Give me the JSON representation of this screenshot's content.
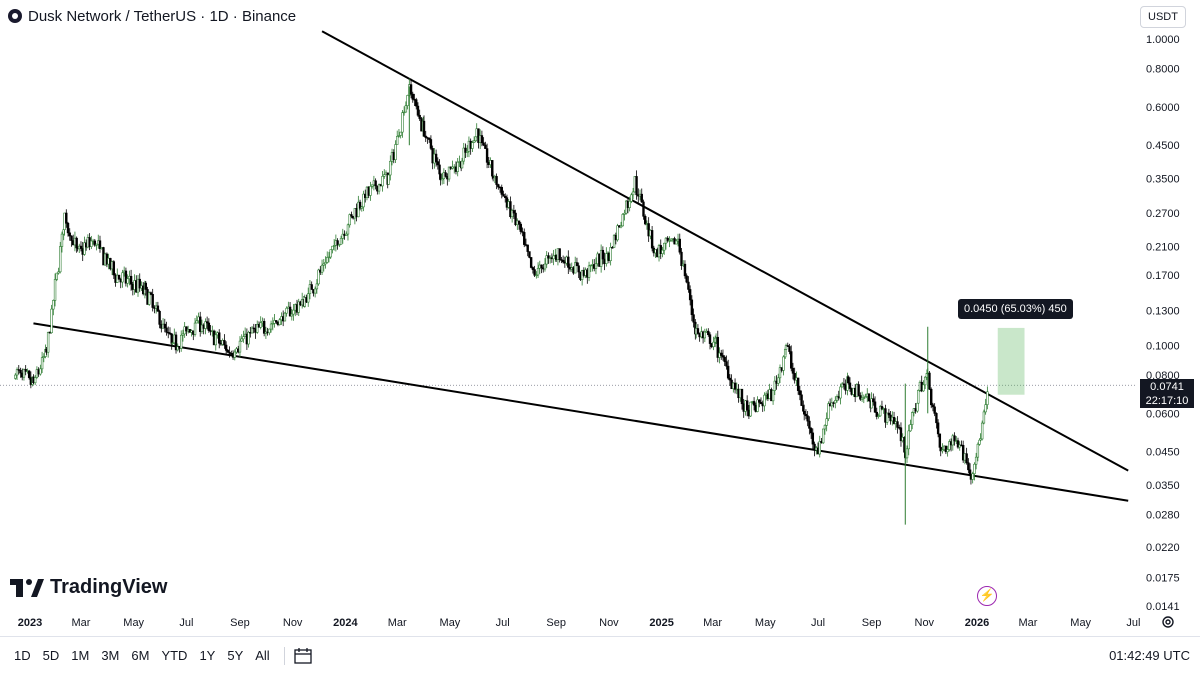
{
  "header": {
    "symbol_title": "Dusk Network / TetherUS · 1D · Binance"
  },
  "currency_button": "USDT",
  "price_tag": {
    "price": "0.0741",
    "countdown": "22:17:10"
  },
  "measure_label": "0.0450 (65.03%) 450",
  "brand": "TradingView",
  "bottom_bar": {
    "ranges": [
      "1D",
      "5D",
      "1M",
      "3M",
      "6M",
      "YTD",
      "1Y",
      "5Y",
      "All"
    ],
    "clock": "01:42:49 UTC"
  },
  "chart_data": {
    "type": "candlestick",
    "y_scale": "log",
    "ylim": [
      0.0141,
      1.0
    ],
    "y_ticks": [
      "1.0000",
      "0.8000",
      "0.6000",
      "0.4500",
      "0.3500",
      "0.2700",
      "0.2100",
      "0.1700",
      "0.1300",
      "0.1000",
      "0.0800",
      "0.0600",
      "0.0450",
      "0.0350",
      "0.0280",
      "0.0220",
      "0.0175",
      "0.0141"
    ],
    "x_ticks": [
      "2023",
      "Mar",
      "May",
      "Jul",
      "Sep",
      "Nov",
      "2024",
      "Mar",
      "May",
      "Jul",
      "Sep",
      "Nov",
      "2025",
      "Mar",
      "May",
      "Jul",
      "Sep",
      "Nov",
      "2026",
      "Mar",
      "May",
      "Jul"
    ],
    "colors": {
      "up": "#26a69a",
      "down": "#000000",
      "candle": "#2e7d32",
      "trend": "#000000",
      "measure": "#4caf50"
    },
    "price_path": [
      [
        "2022-12-15",
        0.082
      ],
      [
        "2023-01-05",
        0.075
      ],
      [
        "2023-01-20",
        0.095
      ],
      [
        "2023-02-01",
        0.17
      ],
      [
        "2023-02-10",
        0.26
      ],
      [
        "2023-02-25",
        0.2
      ],
      [
        "2023-03-15",
        0.22
      ],
      [
        "2023-04-10",
        0.17
      ],
      [
        "2023-05-15",
        0.15
      ],
      [
        "2023-06-15",
        0.1
      ],
      [
        "2023-07-15",
        0.12
      ],
      [
        "2023-08-20",
        0.095
      ],
      [
        "2023-09-15",
        0.11
      ],
      [
        "2023-10-15",
        0.12
      ],
      [
        "2023-11-15",
        0.14
      ],
      [
        "2023-12-15",
        0.2
      ],
      [
        "2024-01-20",
        0.3
      ],
      [
        "2024-02-20",
        0.36
      ],
      [
        "2024-03-15",
        0.7
      ],
      [
        "2024-04-01",
        0.5
      ],
      [
        "2024-04-20",
        0.36
      ],
      [
        "2024-05-15",
        0.4
      ],
      [
        "2024-06-01",
        0.5
      ],
      [
        "2024-06-20",
        0.36
      ],
      [
        "2024-07-20",
        0.24
      ],
      [
        "2024-08-05",
        0.17
      ],
      [
        "2024-09-01",
        0.2
      ],
      [
        "2024-10-01",
        0.17
      ],
      [
        "2024-11-01",
        0.2
      ],
      [
        "2024-12-01",
        0.34
      ],
      [
        "2024-12-25",
        0.2
      ],
      [
        "2025-01-20",
        0.22
      ],
      [
        "2025-02-10",
        0.11
      ],
      [
        "2025-03-05",
        0.1
      ],
      [
        "2025-03-25",
        0.075
      ],
      [
        "2025-04-10",
        0.06
      ],
      [
        "2025-05-10",
        0.07
      ],
      [
        "2025-05-25",
        0.1
      ],
      [
        "2025-06-15",
        0.06
      ],
      [
        "2025-07-01",
        0.045
      ],
      [
        "2025-07-15",
        0.065
      ],
      [
        "2025-08-05",
        0.075
      ],
      [
        "2025-09-01",
        0.065
      ],
      [
        "2025-10-01",
        0.055
      ],
      [
        "2025-10-10",
        0.045
      ],
      [
        "2025-10-25",
        0.07
      ],
      [
        "2025-11-05",
        0.08
      ],
      [
        "2025-11-20",
        0.045
      ],
      [
        "2025-12-10",
        0.05
      ],
      [
        "2025-12-25",
        0.038
      ],
      [
        "2026-01-05",
        0.05
      ],
      [
        "2026-01-15",
        0.074
      ]
    ],
    "notable_wicks": [
      {
        "date": "2025-10-10",
        "low": 0.026,
        "high": 0.075
      },
      {
        "date": "2025-11-05",
        "low": 0.06,
        "high": 0.115
      },
      {
        "date": "2024-03-15",
        "low": 0.45,
        "high": 0.7
      }
    ],
    "trendlines": [
      {
        "name": "upper",
        "from": [
          "2023-12-05",
          1.06
        ],
        "to": [
          "2026-06-25",
          0.039
        ]
      },
      {
        "name": "lower",
        "from": [
          "2023-01-05",
          0.118
        ],
        "to": [
          "2026-06-25",
          0.0311
        ]
      }
    ],
    "measure_box": {
      "from_date": "2026-01-25",
      "to_date": "2026-02-25",
      "from_price": 0.069,
      "to_price": 0.114
    },
    "last_price": 0.0741
  }
}
